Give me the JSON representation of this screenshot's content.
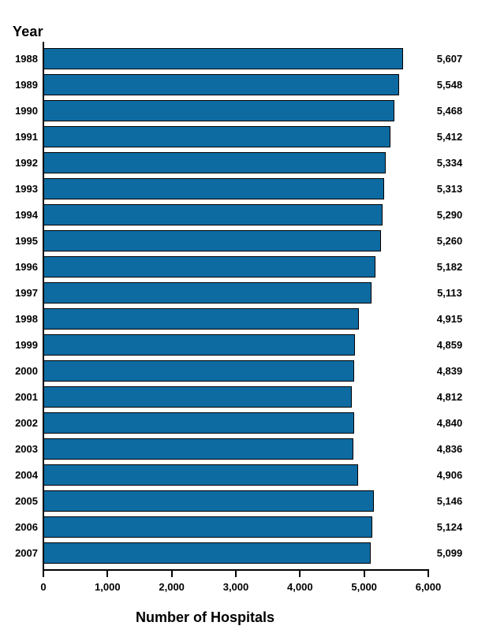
{
  "chart_data": {
    "type": "bar",
    "orientation": "horizontal",
    "ylabel": "Year",
    "xlabel": "Number of Hospitals",
    "categories": [
      "1988",
      "1989",
      "1990",
      "1991",
      "1992",
      "1993",
      "1994",
      "1995",
      "1996",
      "1997",
      "1998",
      "1999",
      "2000",
      "2001",
      "2002",
      "2003",
      "2004",
      "2005",
      "2006",
      "2007"
    ],
    "values": [
      5607,
      5548,
      5468,
      5412,
      5334,
      5313,
      5290,
      5260,
      5182,
      5113,
      4915,
      4859,
      4839,
      4812,
      4840,
      4836,
      4906,
      5146,
      5124,
      5099
    ],
    "value_labels": [
      "5,607",
      "5,548",
      "5,468",
      "5,412",
      "5,334",
      "5,313",
      "5,290",
      "5,260",
      "5,182",
      "5,113",
      "4,915",
      "4,859",
      "4,839",
      "4,812",
      "4,840",
      "4,836",
      "4,906",
      "5,146",
      "5,124",
      "5,099"
    ],
    "xlim": [
      0,
      6000
    ],
    "x_ticks": [
      0,
      1000,
      2000,
      3000,
      4000,
      5000,
      6000
    ],
    "x_tick_labels": [
      "0",
      "1,000",
      "2,000",
      "3,000",
      "4,000",
      "5,000",
      "6,000"
    ],
    "grid": false,
    "legend": "none",
    "bar_color": "#0d6ba2",
    "bar_border_color": "#000000",
    "axis_color": "#000000",
    "text_color": "#000000"
  }
}
